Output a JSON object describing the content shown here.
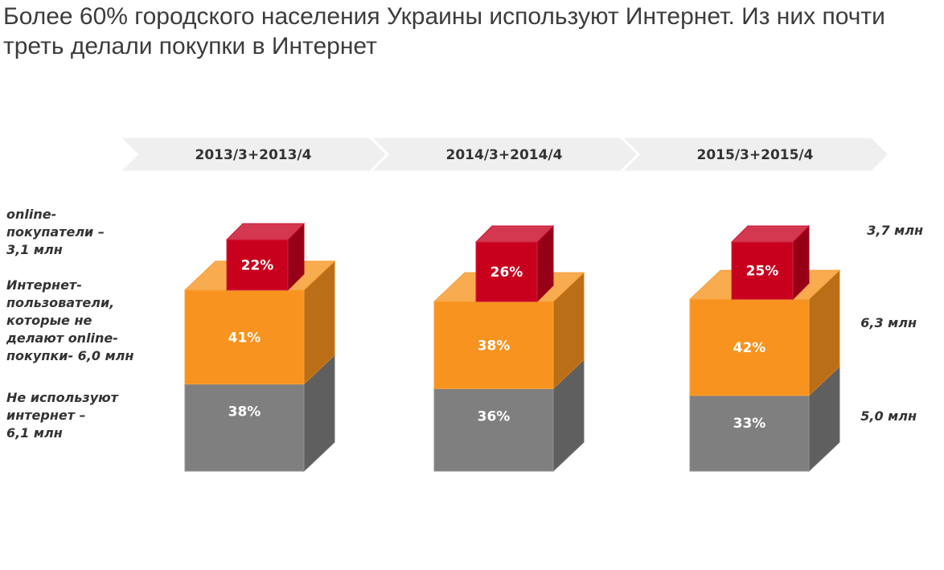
{
  "title": "Более 60% городского населения Украины используют Интернет. Из них почти треть делали покупки в Интернет",
  "colors": {
    "online": "#c8001e",
    "internet": "#f7931e",
    "nonusers": "#7f7f7f",
    "header_band": "#efefef"
  },
  "chart_data": {
    "type": "bar",
    "stacked": true,
    "style": "3d-stacked-blocks",
    "categories": [
      "2013/3+2013/4",
      "2014/3+2014/4",
      "2015/3+2015/4"
    ],
    "series": [
      {
        "key": "nonusers",
        "name": "Не используют интернет – 6,1 млн",
        "values": [
          38,
          36,
          33
        ],
        "labels": [
          "38%",
          "36%",
          "33%"
        ]
      },
      {
        "key": "internet",
        "name": "Интернет-пользователи, которые не делают online-покупки- 6,0 млн",
        "values": [
          41,
          38,
          42
        ],
        "labels": [
          "41%",
          "38%",
          "42%"
        ]
      },
      {
        "key": "online",
        "name": "online-покупатели – 3,1 млн",
        "values": [
          22,
          26,
          25
        ],
        "labels": [
          "22%",
          "26%",
          "25%"
        ]
      }
    ],
    "left_labels": {
      "online": "online-\nпокупатели –\n3,1 млн",
      "internet": "Интернет-\nпользователи,\nкоторые не\nделают online-\nпокупки- 6,0 млн",
      "nonusers": "Не используют\nинтернет –\n6,1 млн"
    },
    "right_values": {
      "online": "3,7 млн",
      "internet": "6,3 млн",
      "nonusers": "5,0 млн"
    },
    "legend_placement": "left"
  }
}
